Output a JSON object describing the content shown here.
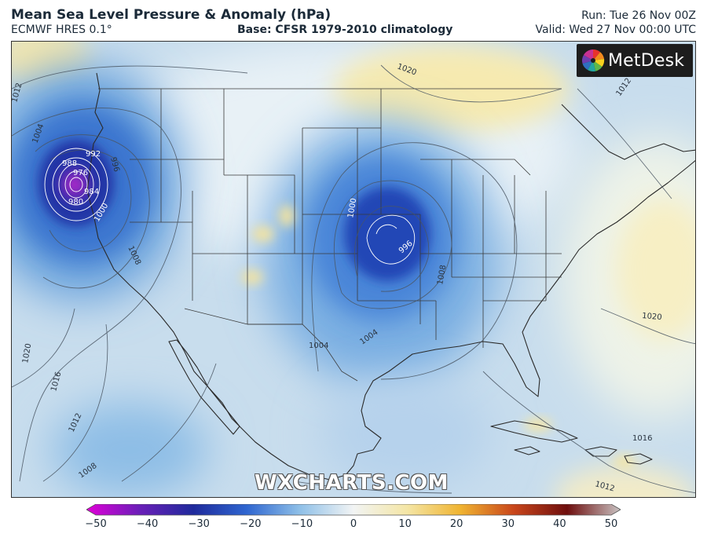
{
  "header": {
    "title": "Mean Sea Level Pressure & Anomaly (hPa)",
    "model": "ECMWF HRES 0.1°",
    "base": "Base: CFSR 1979-2010 climatology",
    "run": "Run: Tue 26 Nov 00Z",
    "valid": "Valid: Wed 27 Nov 00:00 UTC"
  },
  "logo": {
    "text": "MetDesk",
    "icon": "metdesk-logo-icon"
  },
  "watermark": "WXCHARTS.COM",
  "isobar_labels": [
    "1020",
    "1012",
    "1004",
    "992",
    "996",
    "988",
    "976",
    "980",
    "984",
    "1000",
    "1000",
    "996",
    "1008",
    "1004",
    "1004",
    "1008",
    "1020",
    "1020",
    "1016",
    "1012",
    "1008",
    "1016",
    "1012",
    "1012"
  ],
  "colorbar": {
    "ticks": [
      "−50",
      "−40",
      "−30",
      "−20",
      "−10",
      "0",
      "10",
      "20",
      "30",
      "40",
      "50"
    ],
    "stops": [
      "#e000d8",
      "#6a1fb8",
      "#1f2a9c",
      "#2f66d0",
      "#8fc0e8",
      "#f2f4f4",
      "#f4e6a6",
      "#f0b431",
      "#c9461b",
      "#6e0e0e",
      "#c9c3c3"
    ]
  },
  "colors": {
    "low_center": "#2a2f9a",
    "deep_low": "#c524c9",
    "land_outline": "#2a2a2a",
    "isobar": "#4a5663",
    "isobar_core": "#ffffff"
  }
}
